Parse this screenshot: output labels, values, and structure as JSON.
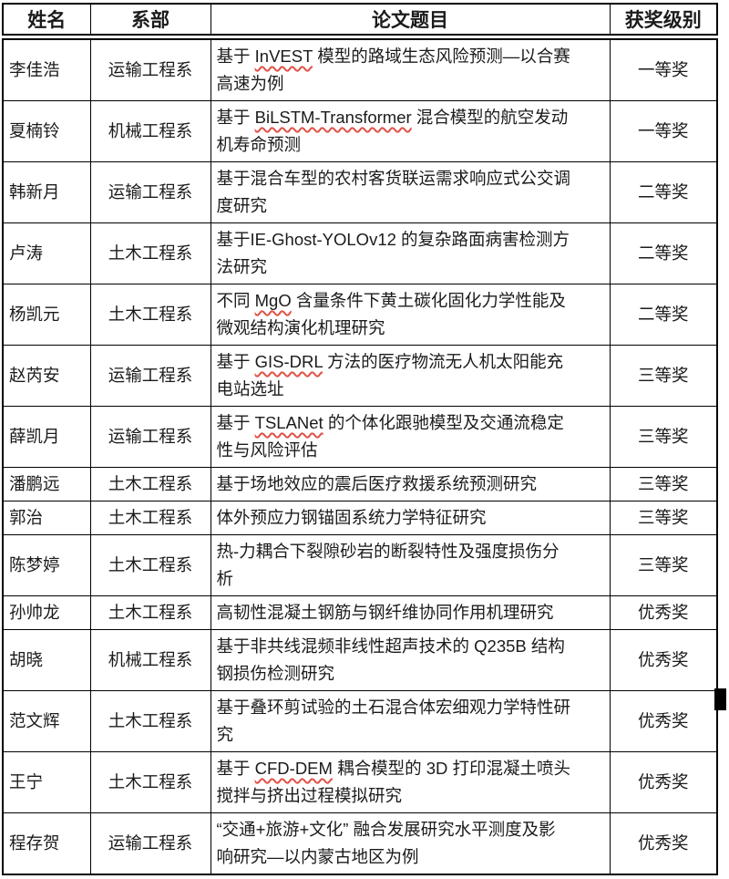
{
  "colors": {
    "background": "#ffffff",
    "table_border": "#000000",
    "text": "#1b1b1b",
    "spellcheck_wavy": "#e05248"
  },
  "table": {
    "columns": [
      "姓名",
      "系部",
      "论文题目",
      "获奖级别"
    ],
    "rows": [
      {
        "name": "李佳浩",
        "dept": "运输工程系",
        "title": "基于 InVEST 模型的路域生态风险预测—以合赛\n高速为例",
        "award": "一等奖",
        "misspelled": [
          "InVEST"
        ]
      },
      {
        "name": "夏楠铃",
        "dept": "机械工程系",
        "title": "基于 BiLSTM-Transformer 混合模型的航空发动\n机寿命预测",
        "award": "一等奖",
        "misspelled": [
          "BiLSTM-Transformer"
        ]
      },
      {
        "name": "韩新月",
        "dept": "运输工程系",
        "title": "基于混合车型的农村客货联运需求响应式公交调\n度研究",
        "award": "二等奖",
        "misspelled": []
      },
      {
        "name": "卢涛",
        "dept": "土木工程系",
        "title": "基于IE-Ghost-YOLOv12 的复杂路面病害检测方\n法研究",
        "award": "二等奖",
        "misspelled": []
      },
      {
        "name": "杨凯元",
        "dept": "土木工程系",
        "title": "不同 MgO 含量条件下黄土碳化固化力学性能及\n微观结构演化机理研究",
        "award": "二等奖",
        "misspelled": [
          "MgO"
        ]
      },
      {
        "name": "赵芮安",
        "dept": "运输工程系",
        "title": "基于 GIS-DRL 方法的医疗物流无人机太阳能充\n电站选址",
        "award": "三等奖",
        "misspelled": [
          "GIS-DRL"
        ]
      },
      {
        "name": "薛凯月",
        "dept": "运输工程系",
        "title": "基于 TSLANet 的个体化跟驰模型及交通流稳定\n性与风险评估",
        "award": "三等奖",
        "misspelled": [
          "TSLANet"
        ]
      },
      {
        "name": "潘鹏远",
        "dept": "土木工程系",
        "title": "基于场地效应的震后医疗救援系统预测研究",
        "award": "三等奖",
        "misspelled": []
      },
      {
        "name": "郭治",
        "dept": "土木工程系",
        "title": "体外预应力钢锚固系统力学特征研究",
        "award": "三等奖",
        "misspelled": []
      },
      {
        "name": "陈梦婷",
        "dept": "土木工程系",
        "title": "热-力耦合下裂隙砂岩的断裂特性及强度损伤分\n析",
        "award": "三等奖",
        "misspelled": []
      },
      {
        "name": "孙帅龙",
        "dept": "土木工程系",
        "title": "高韧性混凝土钢筋与钢纤维协同作用机理研究",
        "award": "优秀奖",
        "misspelled": []
      },
      {
        "name": "胡晓",
        "dept": "机械工程系",
        "title": "基于非共线混频非线性超声技术的 Q235B 结构\n钢损伤检测研究",
        "award": "优秀奖",
        "misspelled": []
      },
      {
        "name": "范文辉",
        "dept": "土木工程系",
        "title": "基于叠环剪试验的土石混合体宏细观力学特性研\n究",
        "award": "优秀奖",
        "misspelled": []
      },
      {
        "name": "王宁",
        "dept": "土木工程系",
        "title": "基于 CFD-DEM 耦合模型的 3D 打印混凝土喷头\n搅拌与挤出过程模拟研究",
        "award": "优秀奖",
        "misspelled": [
          "CFD-DEM"
        ]
      },
      {
        "name": "程存贺",
        "dept": "运输工程系",
        "title": "“交通+旅游+文化” 融合发展研究水平测度及影\n响研究—以内蒙古地区为例",
        "award": "优秀奖",
        "misspelled": []
      }
    ]
  }
}
